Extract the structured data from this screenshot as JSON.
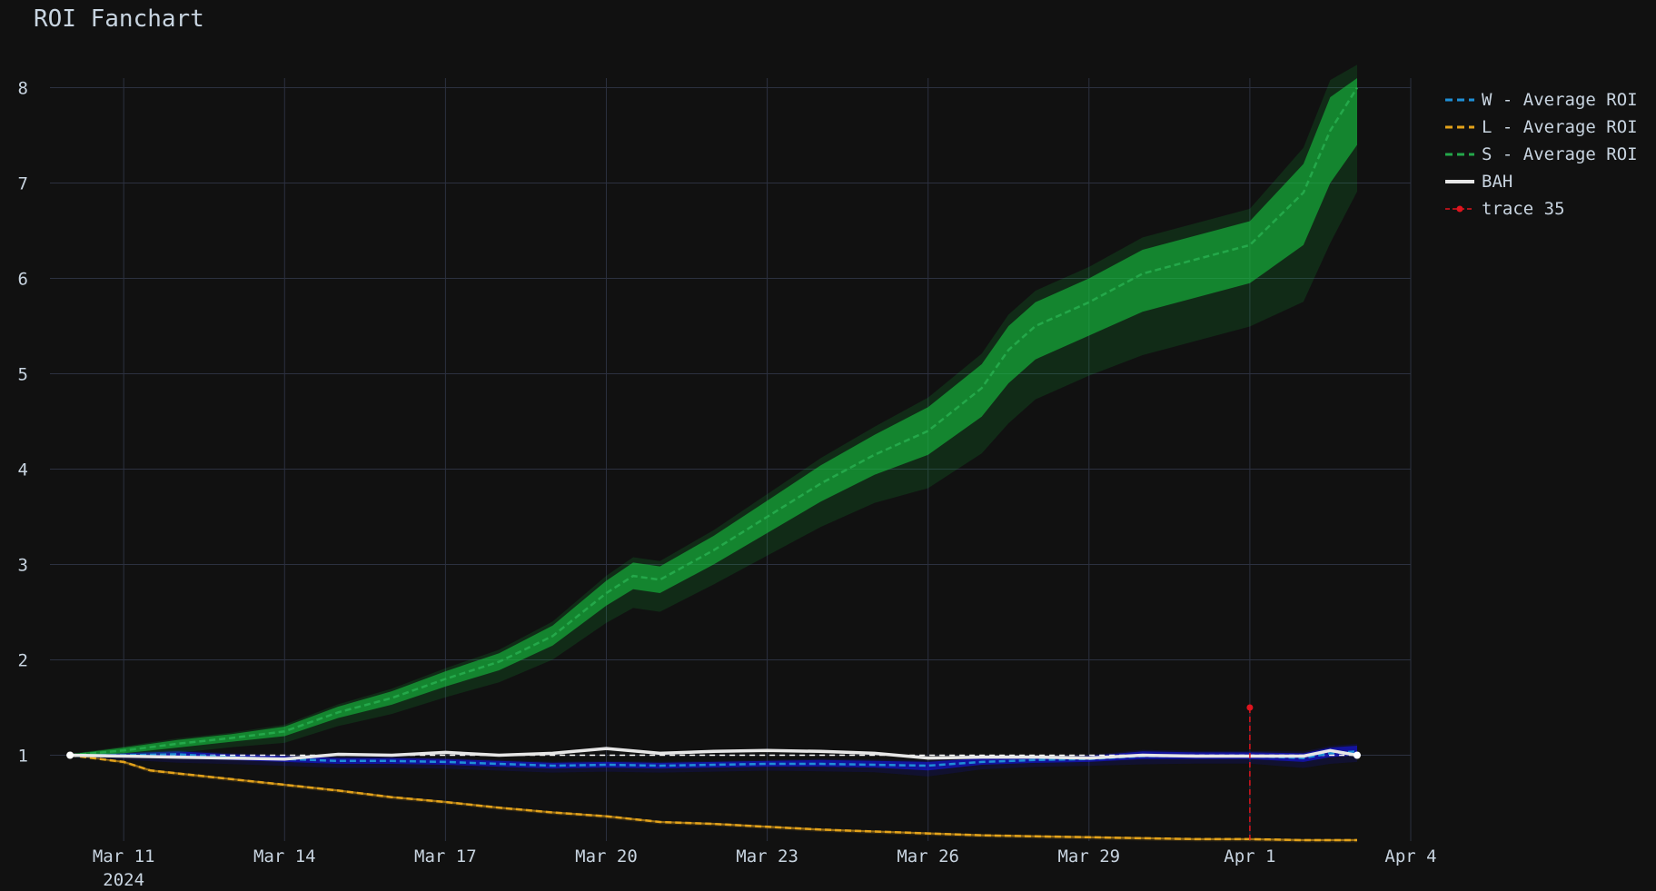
{
  "chart_data": {
    "type": "line",
    "title": "ROI Fanchart",
    "xlabel": "",
    "ylabel": "",
    "x_range": [
      "2024-03-09T15:00",
      "2024-04-04T00:00"
    ],
    "ylim": [
      0.1,
      8.1
    ],
    "grid": true,
    "legend_position": "top-right",
    "x_ticks": [
      {
        "date": "2024-03-11",
        "label": "Mar 11",
        "sublabel": "2024"
      },
      {
        "date": "2024-03-14",
        "label": "Mar 14",
        "sublabel": ""
      },
      {
        "date": "2024-03-17",
        "label": "Mar 17",
        "sublabel": ""
      },
      {
        "date": "2024-03-20",
        "label": "Mar 20",
        "sublabel": ""
      },
      {
        "date": "2024-03-23",
        "label": "Mar 23",
        "sublabel": ""
      },
      {
        "date": "2024-03-26",
        "label": "Mar 26",
        "sublabel": ""
      },
      {
        "date": "2024-03-29",
        "label": "Mar 29",
        "sublabel": ""
      },
      {
        "date": "2024-04-01",
        "label": "Apr 1",
        "sublabel": ""
      },
      {
        "date": "2024-04-04",
        "label": "Apr 4",
        "sublabel": ""
      }
    ],
    "y_ticks": [
      1,
      2,
      3,
      4,
      5,
      6,
      7,
      8
    ],
    "series": [
      {
        "name": "W - Average ROI",
        "style": "dash",
        "color": "#1f8fd6",
        "band_color": "#1515e6",
        "points": [
          {
            "x": "2024-03-10",
            "y": 1.0,
            "lo": 0.99,
            "hi": 1.01
          },
          {
            "x": "2024-03-11",
            "y": 1.0,
            "lo": 0.98,
            "hi": 1.02
          },
          {
            "x": "2024-03-12",
            "y": 1.01,
            "lo": 0.97,
            "hi": 1.04
          },
          {
            "x": "2024-03-13",
            "y": 0.98,
            "lo": 0.95,
            "hi": 1.01
          },
          {
            "x": "2024-03-14",
            "y": 0.96,
            "lo": 0.93,
            "hi": 0.99
          },
          {
            "x": "2024-03-15",
            "y": 0.94,
            "lo": 0.91,
            "hi": 0.97
          },
          {
            "x": "2024-03-16",
            "y": 0.94,
            "lo": 0.91,
            "hi": 0.97
          },
          {
            "x": "2024-03-17",
            "y": 0.93,
            "lo": 0.9,
            "hi": 0.96
          },
          {
            "x": "2024-03-18",
            "y": 0.91,
            "lo": 0.88,
            "hi": 0.94
          },
          {
            "x": "2024-03-19",
            "y": 0.89,
            "lo": 0.86,
            "hi": 0.92
          },
          {
            "x": "2024-03-20",
            "y": 0.9,
            "lo": 0.87,
            "hi": 0.93
          },
          {
            "x": "2024-03-21",
            "y": 0.89,
            "lo": 0.86,
            "hi": 0.92
          },
          {
            "x": "2024-03-22",
            "y": 0.9,
            "lo": 0.87,
            "hi": 0.93
          },
          {
            "x": "2024-03-23",
            "y": 0.91,
            "lo": 0.88,
            "hi": 0.94
          },
          {
            "x": "2024-03-24",
            "y": 0.91,
            "lo": 0.88,
            "hi": 0.95
          },
          {
            "x": "2024-03-25",
            "y": 0.9,
            "lo": 0.87,
            "hi": 0.94
          },
          {
            "x": "2024-03-26",
            "y": 0.89,
            "lo": 0.84,
            "hi": 0.93
          },
          {
            "x": "2024-03-27",
            "y": 0.93,
            "lo": 0.9,
            "hi": 0.97
          },
          {
            "x": "2024-03-28",
            "y": 0.95,
            "lo": 0.92,
            "hi": 0.98
          },
          {
            "x": "2024-03-29",
            "y": 0.96,
            "lo": 0.93,
            "hi": 0.99
          },
          {
            "x": "2024-03-30",
            "y": 0.99,
            "lo": 0.96,
            "hi": 1.04
          },
          {
            "x": "2024-03-31",
            "y": 0.99,
            "lo": 0.96,
            "hi": 1.03
          },
          {
            "x": "2024-04-01",
            "y": 0.99,
            "lo": 0.96,
            "hi": 1.03
          },
          {
            "x": "2024-04-02",
            "y": 0.97,
            "lo": 0.93,
            "hi": 1.02
          },
          {
            "x": "2024-04-02T12:00",
            "y": 1.02,
            "lo": 0.98,
            "hi": 1.08
          },
          {
            "x": "2024-04-03",
            "y": 1.04,
            "lo": 1.0,
            "hi": 1.1
          }
        ]
      },
      {
        "name": "L - Average ROI",
        "style": "dash",
        "color": "#e3a21a",
        "band_color": "#e3a21a",
        "points": [
          {
            "x": "2024-03-10",
            "y": 1.0,
            "lo": 1.0,
            "hi": 1.0
          },
          {
            "x": "2024-03-11",
            "y": 0.93,
            "lo": 0.92,
            "hi": 0.94
          },
          {
            "x": "2024-03-11T12:00",
            "y": 0.84,
            "lo": 0.83,
            "hi": 0.85
          },
          {
            "x": "2024-03-12",
            "y": 0.81,
            "lo": 0.8,
            "hi": 0.82
          },
          {
            "x": "2024-03-13",
            "y": 0.75,
            "lo": 0.74,
            "hi": 0.76
          },
          {
            "x": "2024-03-14",
            "y": 0.69,
            "lo": 0.68,
            "hi": 0.7
          },
          {
            "x": "2024-03-15",
            "y": 0.63,
            "lo": 0.62,
            "hi": 0.64
          },
          {
            "x": "2024-03-16",
            "y": 0.56,
            "lo": 0.55,
            "hi": 0.57
          },
          {
            "x": "2024-03-17",
            "y": 0.51,
            "lo": 0.5,
            "hi": 0.52
          },
          {
            "x": "2024-03-18",
            "y": 0.45,
            "lo": 0.44,
            "hi": 0.46
          },
          {
            "x": "2024-03-19",
            "y": 0.4,
            "lo": 0.39,
            "hi": 0.41
          },
          {
            "x": "2024-03-20",
            "y": 0.36,
            "lo": 0.35,
            "hi": 0.37
          },
          {
            "x": "2024-03-21",
            "y": 0.3,
            "lo": 0.29,
            "hi": 0.31
          },
          {
            "x": "2024-03-22",
            "y": 0.28,
            "lo": 0.27,
            "hi": 0.29
          },
          {
            "x": "2024-03-23",
            "y": 0.25,
            "lo": 0.24,
            "hi": 0.26
          },
          {
            "x": "2024-03-24",
            "y": 0.22,
            "lo": 0.21,
            "hi": 0.23
          },
          {
            "x": "2024-03-25",
            "y": 0.2,
            "lo": 0.19,
            "hi": 0.21
          },
          {
            "x": "2024-03-26",
            "y": 0.18,
            "lo": 0.17,
            "hi": 0.19
          },
          {
            "x": "2024-03-27",
            "y": 0.16,
            "lo": 0.15,
            "hi": 0.17
          },
          {
            "x": "2024-03-28",
            "y": 0.15,
            "lo": 0.14,
            "hi": 0.16
          },
          {
            "x": "2024-03-29",
            "y": 0.14,
            "lo": 0.13,
            "hi": 0.15
          },
          {
            "x": "2024-03-30",
            "y": 0.13,
            "lo": 0.12,
            "hi": 0.14
          },
          {
            "x": "2024-03-31",
            "y": 0.12,
            "lo": 0.11,
            "hi": 0.13
          },
          {
            "x": "2024-04-01",
            "y": 0.12,
            "lo": 0.11,
            "hi": 0.13
          },
          {
            "x": "2024-04-02",
            "y": 0.11,
            "lo": 0.1,
            "hi": 0.12
          },
          {
            "x": "2024-04-03",
            "y": 0.11,
            "lo": 0.1,
            "hi": 0.12
          }
        ]
      },
      {
        "name": "S - Average ROI",
        "style": "dash",
        "color": "#24a84a",
        "band_color": "#17c13f",
        "points": [
          {
            "x": "2024-03-10",
            "y": 1.0,
            "lo": 0.99,
            "hi": 1.01
          },
          {
            "x": "2024-03-11",
            "y": 1.05,
            "lo": 1.02,
            "hi": 1.08
          },
          {
            "x": "2024-03-12",
            "y": 1.12,
            "lo": 1.08,
            "hi": 1.16
          },
          {
            "x": "2024-03-13",
            "y": 1.18,
            "lo": 1.14,
            "hi": 1.22
          },
          {
            "x": "2024-03-14",
            "y": 1.25,
            "lo": 1.2,
            "hi": 1.3
          },
          {
            "x": "2024-03-15",
            "y": 1.45,
            "lo": 1.39,
            "hi": 1.51
          },
          {
            "x": "2024-03-16",
            "y": 1.6,
            "lo": 1.53,
            "hi": 1.67
          },
          {
            "x": "2024-03-17",
            "y": 1.8,
            "lo": 1.72,
            "hi": 1.88
          },
          {
            "x": "2024-03-18",
            "y": 1.98,
            "lo": 1.89,
            "hi": 2.07
          },
          {
            "x": "2024-03-19",
            "y": 2.25,
            "lo": 2.15,
            "hi": 2.36
          },
          {
            "x": "2024-03-20",
            "y": 2.7,
            "lo": 2.57,
            "hi": 2.83
          },
          {
            "x": "2024-03-20T12:00",
            "y": 2.88,
            "lo": 2.74,
            "hi": 3.02
          },
          {
            "x": "2024-03-21",
            "y": 2.84,
            "lo": 2.7,
            "hi": 2.98
          },
          {
            "x": "2024-03-22",
            "y": 3.15,
            "lo": 3.0,
            "hi": 3.3
          },
          {
            "x": "2024-03-23",
            "y": 3.5,
            "lo": 3.33,
            "hi": 3.67
          },
          {
            "x": "2024-03-24",
            "y": 3.85,
            "lo": 3.66,
            "hi": 4.04
          },
          {
            "x": "2024-03-25",
            "y": 4.15,
            "lo": 3.94,
            "hi": 4.36
          },
          {
            "x": "2024-03-26",
            "y": 4.4,
            "lo": 4.15,
            "hi": 4.65
          },
          {
            "x": "2024-03-27",
            "y": 4.85,
            "lo": 4.55,
            "hi": 5.1
          },
          {
            "x": "2024-03-27T12:00",
            "y": 5.25,
            "lo": 4.9,
            "hi": 5.5
          },
          {
            "x": "2024-03-28",
            "y": 5.5,
            "lo": 5.15,
            "hi": 5.75
          },
          {
            "x": "2024-03-29",
            "y": 5.75,
            "lo": 5.4,
            "hi": 6.0
          },
          {
            "x": "2024-03-30",
            "y": 6.05,
            "lo": 5.65,
            "hi": 6.3
          },
          {
            "x": "2024-03-31",
            "y": 6.2,
            "lo": 5.8,
            "hi": 6.45
          },
          {
            "x": "2024-04-01",
            "y": 6.35,
            "lo": 5.95,
            "hi": 6.6
          },
          {
            "x": "2024-04-02",
            "y": 6.9,
            "lo": 6.35,
            "hi": 7.2
          },
          {
            "x": "2024-04-02T12:00",
            "y": 7.55,
            "lo": 7.0,
            "hi": 7.9
          },
          {
            "x": "2024-04-03",
            "y": 8.0,
            "lo": 7.4,
            "hi": 8.1
          }
        ]
      },
      {
        "name": "BAH",
        "style": "solid",
        "color": "#e6e6e6",
        "points": [
          {
            "x": "2024-03-10",
            "y": 1.0
          },
          {
            "x": "2024-03-11",
            "y": 0.99
          },
          {
            "x": "2024-03-12",
            "y": 0.98
          },
          {
            "x": "2024-03-13",
            "y": 0.97
          },
          {
            "x": "2024-03-14",
            "y": 0.96
          },
          {
            "x": "2024-03-15",
            "y": 1.01
          },
          {
            "x": "2024-03-16",
            "y": 1.0
          },
          {
            "x": "2024-03-17",
            "y": 1.03
          },
          {
            "x": "2024-03-18",
            "y": 1.0
          },
          {
            "x": "2024-03-19",
            "y": 1.02
          },
          {
            "x": "2024-03-20",
            "y": 1.07
          },
          {
            "x": "2024-03-21",
            "y": 1.02
          },
          {
            "x": "2024-03-22",
            "y": 1.04
          },
          {
            "x": "2024-03-23",
            "y": 1.05
          },
          {
            "x": "2024-03-24",
            "y": 1.04
          },
          {
            "x": "2024-03-25",
            "y": 1.02
          },
          {
            "x": "2024-03-26",
            "y": 0.97
          },
          {
            "x": "2024-03-27",
            "y": 0.98
          },
          {
            "x": "2024-03-28",
            "y": 0.98
          },
          {
            "x": "2024-03-29",
            "y": 0.97
          },
          {
            "x": "2024-03-30",
            "y": 1.0
          },
          {
            "x": "2024-03-31",
            "y": 0.99
          },
          {
            "x": "2024-04-01",
            "y": 0.99
          },
          {
            "x": "2024-04-02",
            "y": 0.99
          },
          {
            "x": "2024-04-02T12:00",
            "y": 1.05
          },
          {
            "x": "2024-04-03",
            "y": 1.0
          }
        ]
      },
      {
        "name": "trace 35",
        "style": "dash-marker",
        "color": "#e0141e",
        "points": [
          {
            "x": "2024-04-01",
            "y": 1.5
          },
          {
            "x": "2024-04-01",
            "y": 0.1
          }
        ]
      }
    ],
    "reference_line": {
      "y": 1.0,
      "style": "dash",
      "color": "#ffffff",
      "from": "2024-03-10",
      "to": "2024-04-03"
    }
  }
}
